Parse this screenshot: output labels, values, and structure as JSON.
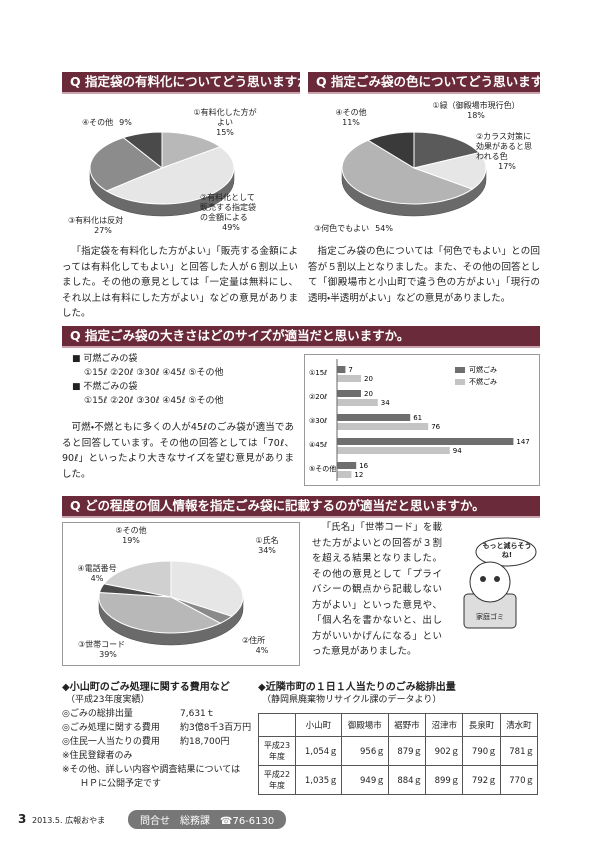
{
  "sections": [
    {
      "heading": "Q 指定袋の有料化についてどう思いますか。",
      "pie": {
        "type": "pie",
        "labels": [
          "①有料化した方がよい",
          "②有料化として販売する指定袋の金額による",
          "③有料化は反対",
          "④その他"
        ],
        "values": [
          15,
          49,
          27,
          9
        ],
        "value_labels": [
          "15%",
          "49%",
          "27%",
          "9%"
        ],
        "colors": [
          "#b8b8b8",
          "#e6e6e6",
          "#8c8c8c",
          "#4a4a4a"
        ]
      },
      "text": "「指定袋を有料化した方がよい」「販売する金額によっては有料化してもよい」と回答した人が６割以上いました。その他の意見としては「一定量は無料にし、それ以上は有料にした方がよい」などの意見がありました。"
    },
    {
      "heading": "Q 指定ごみ袋の色についてどう思いますか。",
      "pie": {
        "type": "pie",
        "labels": [
          "①緑（御殿場市現行色）",
          "②カラス対策に効果があると思われる色",
          "③何色でもよい",
          "④その他"
        ],
        "values": [
          18,
          17,
          54,
          11
        ],
        "value_labels": [
          "18%",
          "17%",
          "54%",
          "11%"
        ],
        "colors": [
          "#5a5a5a",
          "#e6e6e6",
          "#b4b4b4",
          "#3a3a3a"
        ]
      },
      "text": "指定ごみ袋の色については「何色でもよい」との回答が５割以上となりました。また、その他の回答として「御殿場市と小山町で違う色の方がよい」「現行の透明・半透明がよい」などの意見がありました。"
    },
    {
      "heading": "Q 指定ごみ袋の大きさはどのサイズが適当だと思いますか。",
      "options": [
        "■ 可燃ごみの袋",
        "①15ℓ ②20ℓ ③30ℓ ④45ℓ ⑤その他",
        "■ 不燃ごみの袋",
        "①15ℓ ②20ℓ ③30ℓ ④45ℓ ⑤その他"
      ],
      "chart": {
        "type": "bar",
        "categories": [
          "①15ℓ",
          "②20ℓ",
          "③30ℓ",
          "④45ℓ",
          "⑤その他"
        ],
        "series": [
          {
            "name": "可燃ごみ",
            "color": "#6e6e6e",
            "values": [
              7,
              20,
              61,
              147,
              16
            ]
          },
          {
            "name": "不燃ごみ",
            "color": "#c4c4c4",
            "values": [
              20,
              34,
              76,
              94,
              12
            ]
          }
        ]
      },
      "text": "可燃・不燃ともに多くの人が45ℓのごみ袋が適当であると回答しています。その他の回答としては「70ℓ、90ℓ」といったより大きなサイズを望む意見がありました。"
    },
    {
      "heading": "Q どの程度の個人情報を指定ごみ袋に記載するのが適当だと思いますか。",
      "pie": {
        "type": "pie",
        "labels": [
          "①氏名",
          "②住所",
          "③世帯コード",
          "④電話番号",
          "⑤その他"
        ],
        "values": [
          34,
          4,
          39,
          4,
          19
        ],
        "value_labels": [
          "34%",
          "4%",
          "39%",
          "4%",
          "19%"
        ],
        "colors": [
          "#e6e6e6",
          "#8a8a8a",
          "#b8b8b8",
          "#4a4a4a",
          "#d0d0d0"
        ]
      },
      "text": "「氏名」「世帯コード」を載せた方がよいとの回答が３割を超える結果となりました。その他の意見として「プライバシーの観点から記載しない方がよい」といった意見や、「個人名を書かないと、出し方がいいかげんになる」といった意見がありました。",
      "illustration": {
        "bubble": "もっと減らそうね!",
        "bin": "家庭ゴミ"
      }
    }
  ],
  "costs": {
    "title": "◆小山町のごみ処理に関する費用など",
    "subtitle": "（平成23年度実績）",
    "rows": [
      [
        "◎ごみの総排出量",
        "7,631ｔ"
      ],
      [
        "◎ごみ処理に関する費用",
        "約3億8千3百万円"
      ],
      [
        "◎住民一人当たりの費用",
        "約18,700円"
      ]
    ],
    "notes": [
      "※住民登録者のみ",
      "※その他、詳しい内容や調査結果については",
      "ＨＰに公開予定です"
    ]
  },
  "table": {
    "title": "◆近隣市町の１日１人当たりのごみ総排出量",
    "subtitle": "（静岡県廃棄物リサイクル課のデータより）",
    "header": [
      "",
      "小山町",
      "御殿場市",
      "裾野市",
      "沼津市",
      "長泉町",
      "清水町"
    ],
    "rows": [
      [
        "平成23年度",
        "1,054ｇ",
        "956ｇ",
        "879ｇ",
        "902ｇ",
        "790ｇ",
        "781ｇ"
      ],
      [
        "平成22年度",
        "1,035ｇ",
        "949ｇ",
        "884ｇ",
        "899ｇ",
        "792ｇ",
        "770ｇ"
      ]
    ]
  },
  "footer": {
    "page": "3",
    "issue": "2013.5. 広報おやま",
    "contact": "問合せ　総務課",
    "phone": "☎76-6130"
  }
}
